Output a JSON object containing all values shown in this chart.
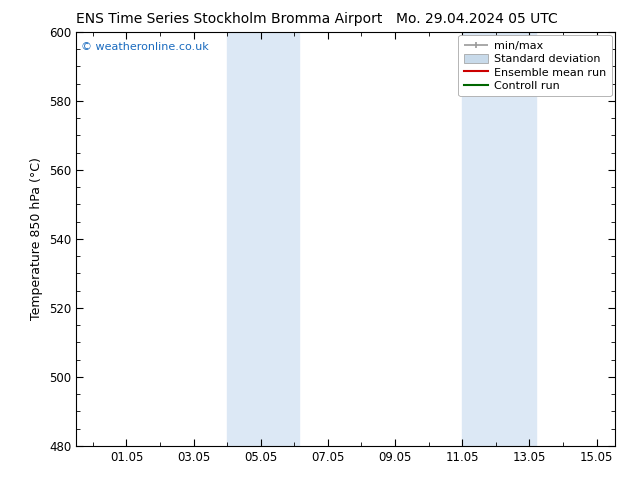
{
  "title": "ENS Time Series Stockholm Bromma Airport      Mo. 29.04.2024 05 UTC",
  "title_left": "ENS Time Series Stockholm Bromma Airport",
  "title_right": "Mo. 29.04.2024 05 UTC",
  "ylabel": "Temperature 850 hPa (°C)",
  "ylim": [
    480,
    600
  ],
  "yticks": [
    480,
    500,
    520,
    540,
    560,
    580,
    600
  ],
  "xtick_labels": [
    "01.05",
    "03.05",
    "05.05",
    "07.05",
    "09.05",
    "11.05",
    "13.05",
    "15.05"
  ],
  "xtick_values": [
    1.0,
    3.0,
    5.0,
    7.0,
    9.0,
    11.0,
    13.0,
    15.0
  ],
  "xmin": -0.5,
  "xmax": 15.55,
  "shaded_band1_x0": 4.0,
  "shaded_band1_x1": 6.15,
  "shaded_band2_x0": 11.0,
  "shaded_band2_x1": 13.2,
  "band_color": "#dce8f5",
  "watermark_text": "© weatheronline.co.uk",
  "watermark_color": "#1a6bbf",
  "legend_minmax_color": "#999999",
  "legend_std_color": "#c8daea",
  "legend_ens_color": "#cc0000",
  "legend_ctrl_color": "#006600",
  "background_color": "#ffffff",
  "spine_color": "#000000",
  "title_fontsize": 10,
  "label_fontsize": 9,
  "tick_fontsize": 8.5,
  "legend_fontsize": 8
}
